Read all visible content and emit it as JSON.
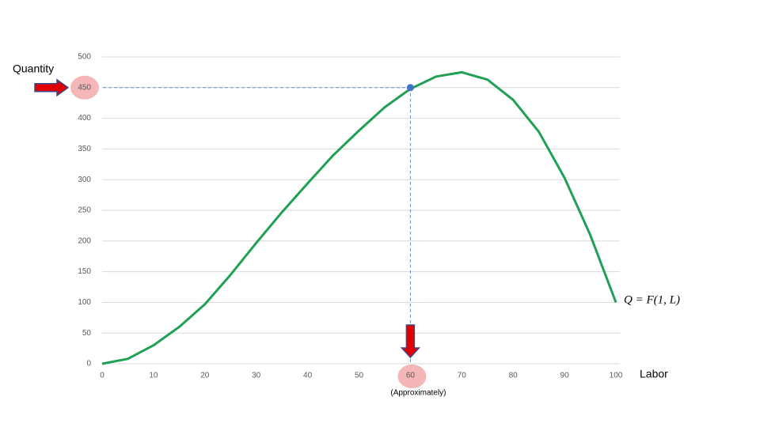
{
  "chart_data": {
    "type": "line",
    "x_label": "Labor",
    "y_label": "Quantity",
    "x": [
      0,
      5,
      10,
      15,
      20,
      25,
      30,
      35,
      40,
      45,
      50,
      55,
      60,
      65,
      70,
      75,
      80,
      85,
      90,
      95,
      100
    ],
    "series": [
      {
        "name": "Q = F(1, L)",
        "color": "#1fa055",
        "values": [
          0,
          8,
          30,
          60,
          97,
          145,
          197,
          247,
          294,
          340,
          380,
          418,
          448,
          468,
          475,
          463,
          430,
          378,
          303,
          210,
          100
        ]
      }
    ],
    "highlight": {
      "x": 60,
      "y": 450,
      "note": "(Approximately)"
    },
    "xlim": [
      0,
      100
    ],
    "xticks": [
      0,
      10,
      20,
      30,
      40,
      50,
      60,
      70,
      80,
      90,
      100
    ],
    "ylim": [
      0,
      500
    ],
    "yticks": [
      0,
      50,
      100,
      150,
      200,
      250,
      300,
      350,
      400,
      450,
      500
    ],
    "grid": true
  }
}
